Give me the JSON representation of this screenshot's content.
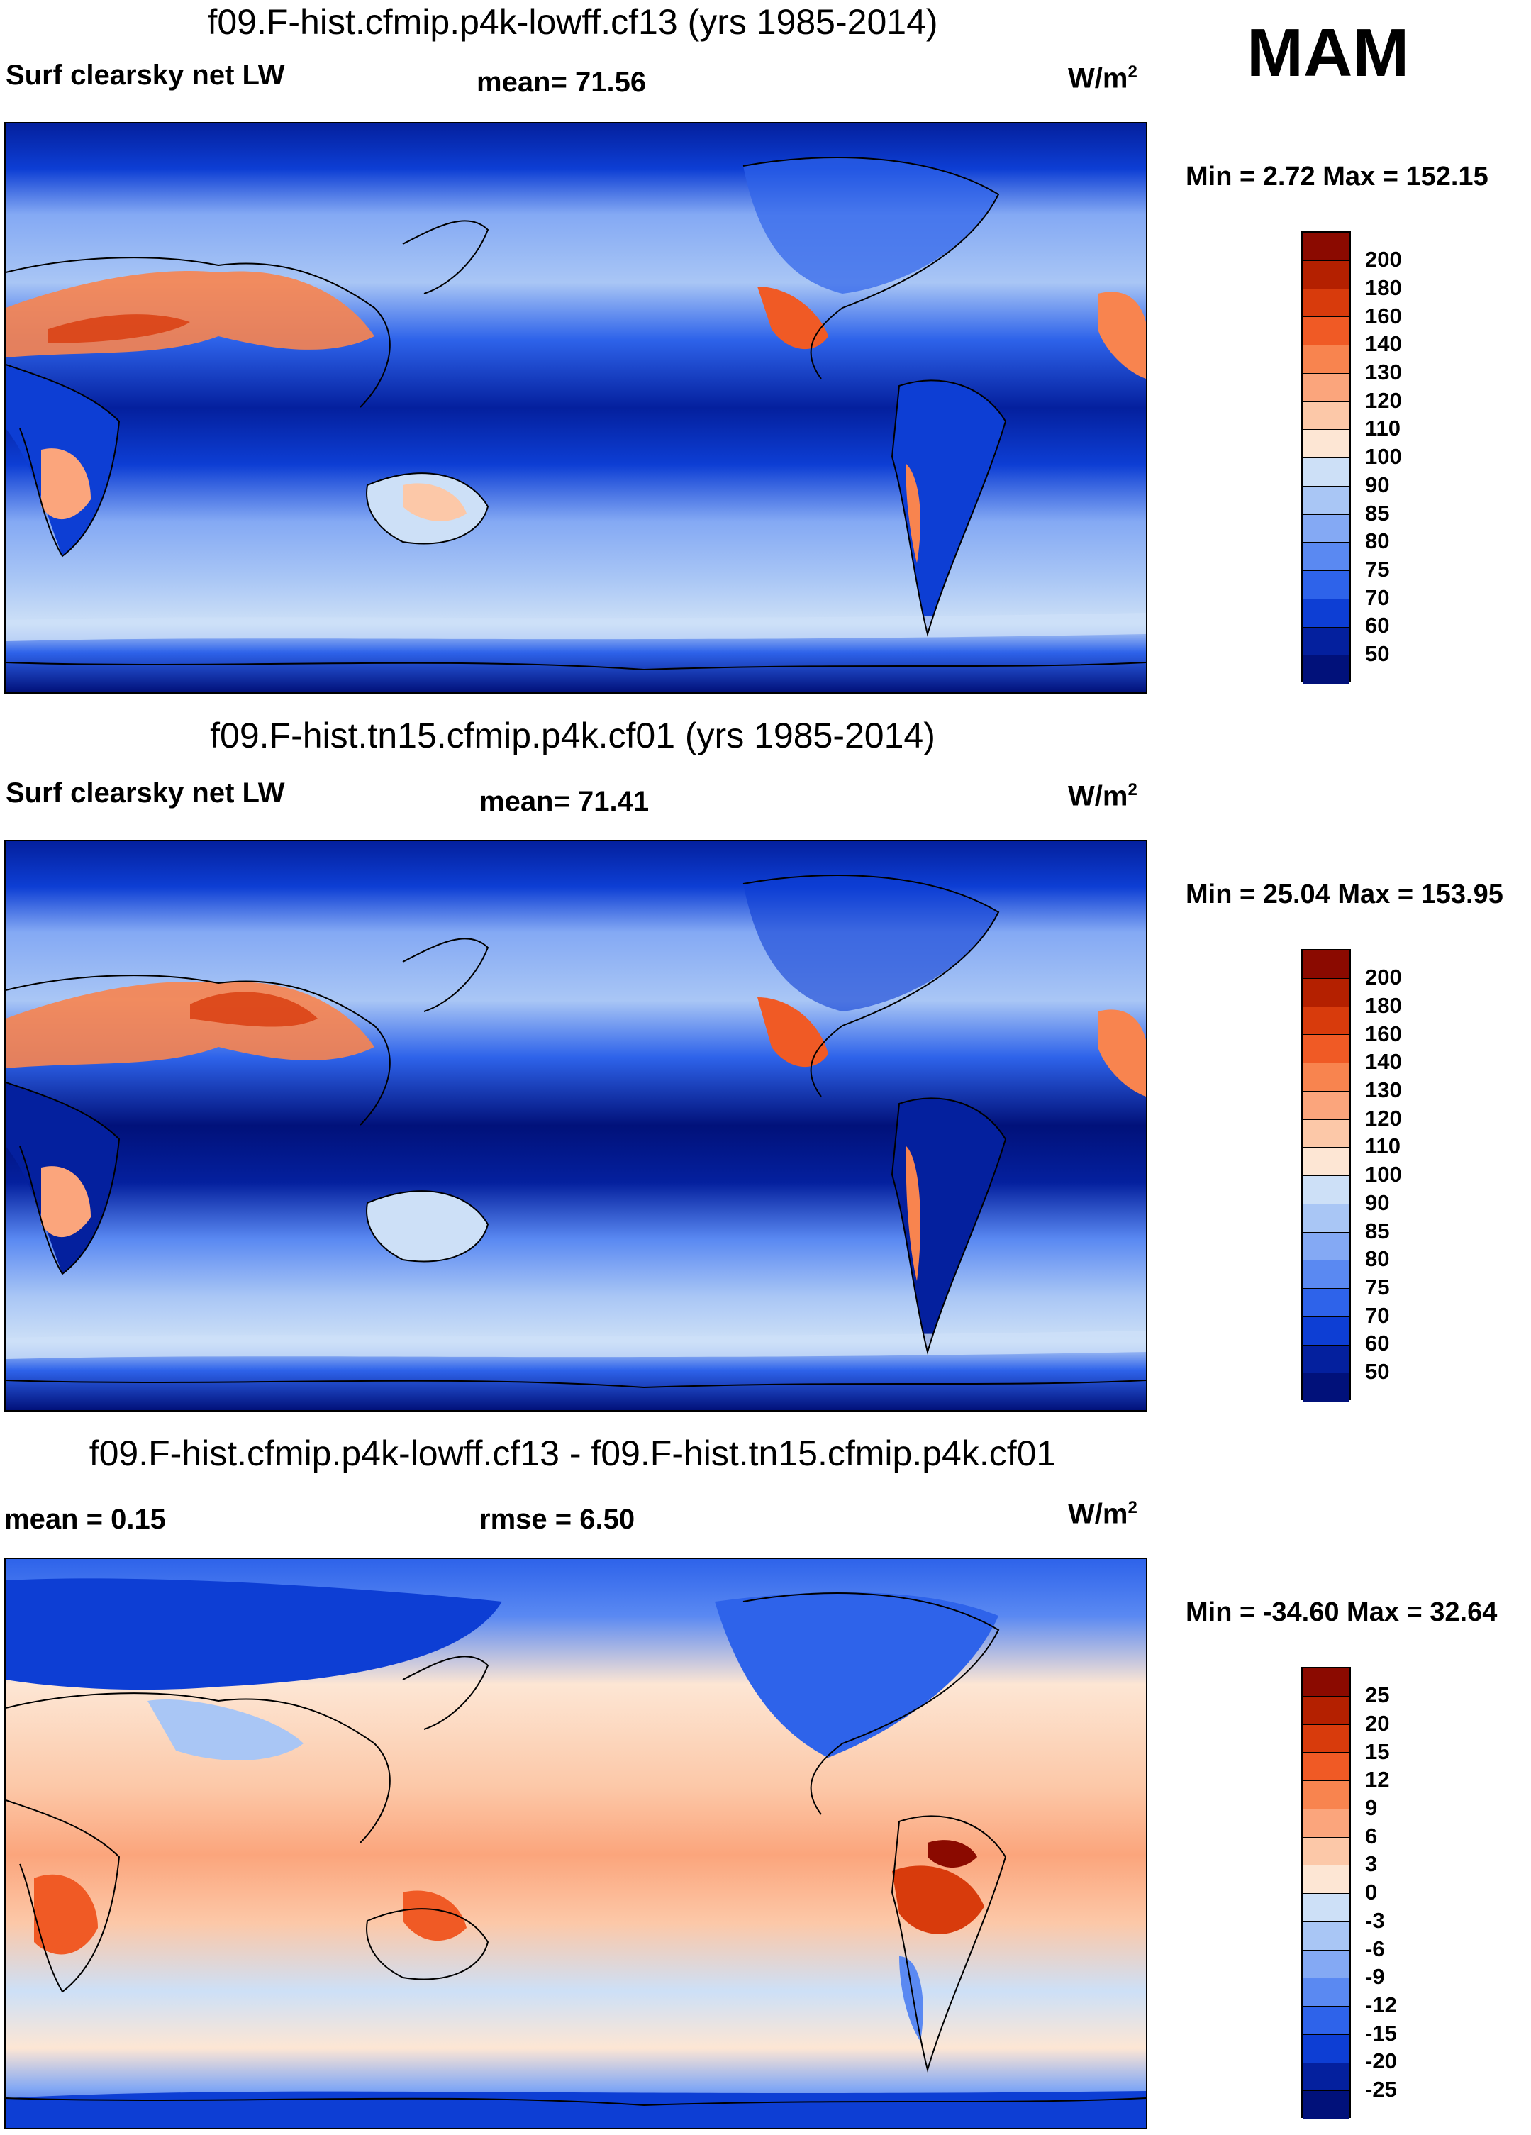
{
  "season": "MAM",
  "panels": [
    {
      "title": "f09.F-hist.cfmip.p4k-lowff.cf13 (yrs 1985-2014)",
      "left_label": "Surf clearsky net LW",
      "mid_label": "mean=  71.56",
      "units": "W/m",
      "units_sup": "2",
      "minmax": "Min =   2.72 Max = 152.15",
      "levels": [
        "200",
        "180",
        "160",
        "140",
        "130",
        "120",
        "110",
        "100",
        "90",
        "85",
        "80",
        "75",
        "70",
        "60",
        "50"
      ],
      "colors": [
        "#8b0a00",
        "#b42000",
        "#d83b0c",
        "#f05a25",
        "#f8844f",
        "#fba57c",
        "#fcc8a8",
        "#fde6d4",
        "#cde0f7",
        "#a9c6f5",
        "#84a9f4",
        "#5a89f2",
        "#2e63ea",
        "#0d3ed4",
        "#04209e",
        "#01117a"
      ]
    },
    {
      "title": "f09.F-hist.tn15.cfmip.p4k.cf01 (yrs 1985-2014)",
      "left_label": "Surf clearsky net LW",
      "mid_label": "mean=  71.41",
      "units": "W/m",
      "units_sup": "2",
      "minmax": "Min =  25.04 Max = 153.95",
      "levels": [
        "200",
        "180",
        "160",
        "140",
        "130",
        "120",
        "110",
        "100",
        "90",
        "85",
        "80",
        "75",
        "70",
        "60",
        "50"
      ],
      "colors": [
        "#8b0a00",
        "#b42000",
        "#d83b0c",
        "#f05a25",
        "#f8844f",
        "#fba57c",
        "#fcc8a8",
        "#fde6d4",
        "#cde0f7",
        "#a9c6f5",
        "#84a9f4",
        "#5a89f2",
        "#2e63ea",
        "#0d3ed4",
        "#04209e",
        "#01117a"
      ]
    },
    {
      "title": "f09.F-hist.cfmip.p4k-lowff.cf13 - f09.F-hist.tn15.cfmip.p4k.cf01",
      "left_label": "mean =   0.15",
      "mid_label": "rmse =   6.50",
      "units": "W/m",
      "units_sup": "2",
      "minmax": "Min = -34.60 Max =  32.64",
      "levels": [
        "25",
        "20",
        "15",
        "12",
        "9",
        "6",
        "3",
        "0",
        "-3",
        "-6",
        "-9",
        "-12",
        "-15",
        "-20",
        "-25"
      ],
      "colors": [
        "#8b0a00",
        "#b42000",
        "#d83b0c",
        "#f05a25",
        "#f8844f",
        "#fba57c",
        "#fcc8a8",
        "#fde6d4",
        "#cde0f7",
        "#a9c6f5",
        "#84a9f4",
        "#5a89f2",
        "#2e63ea",
        "#0d3ed4",
        "#04209e",
        "#01117a"
      ]
    }
  ]
}
